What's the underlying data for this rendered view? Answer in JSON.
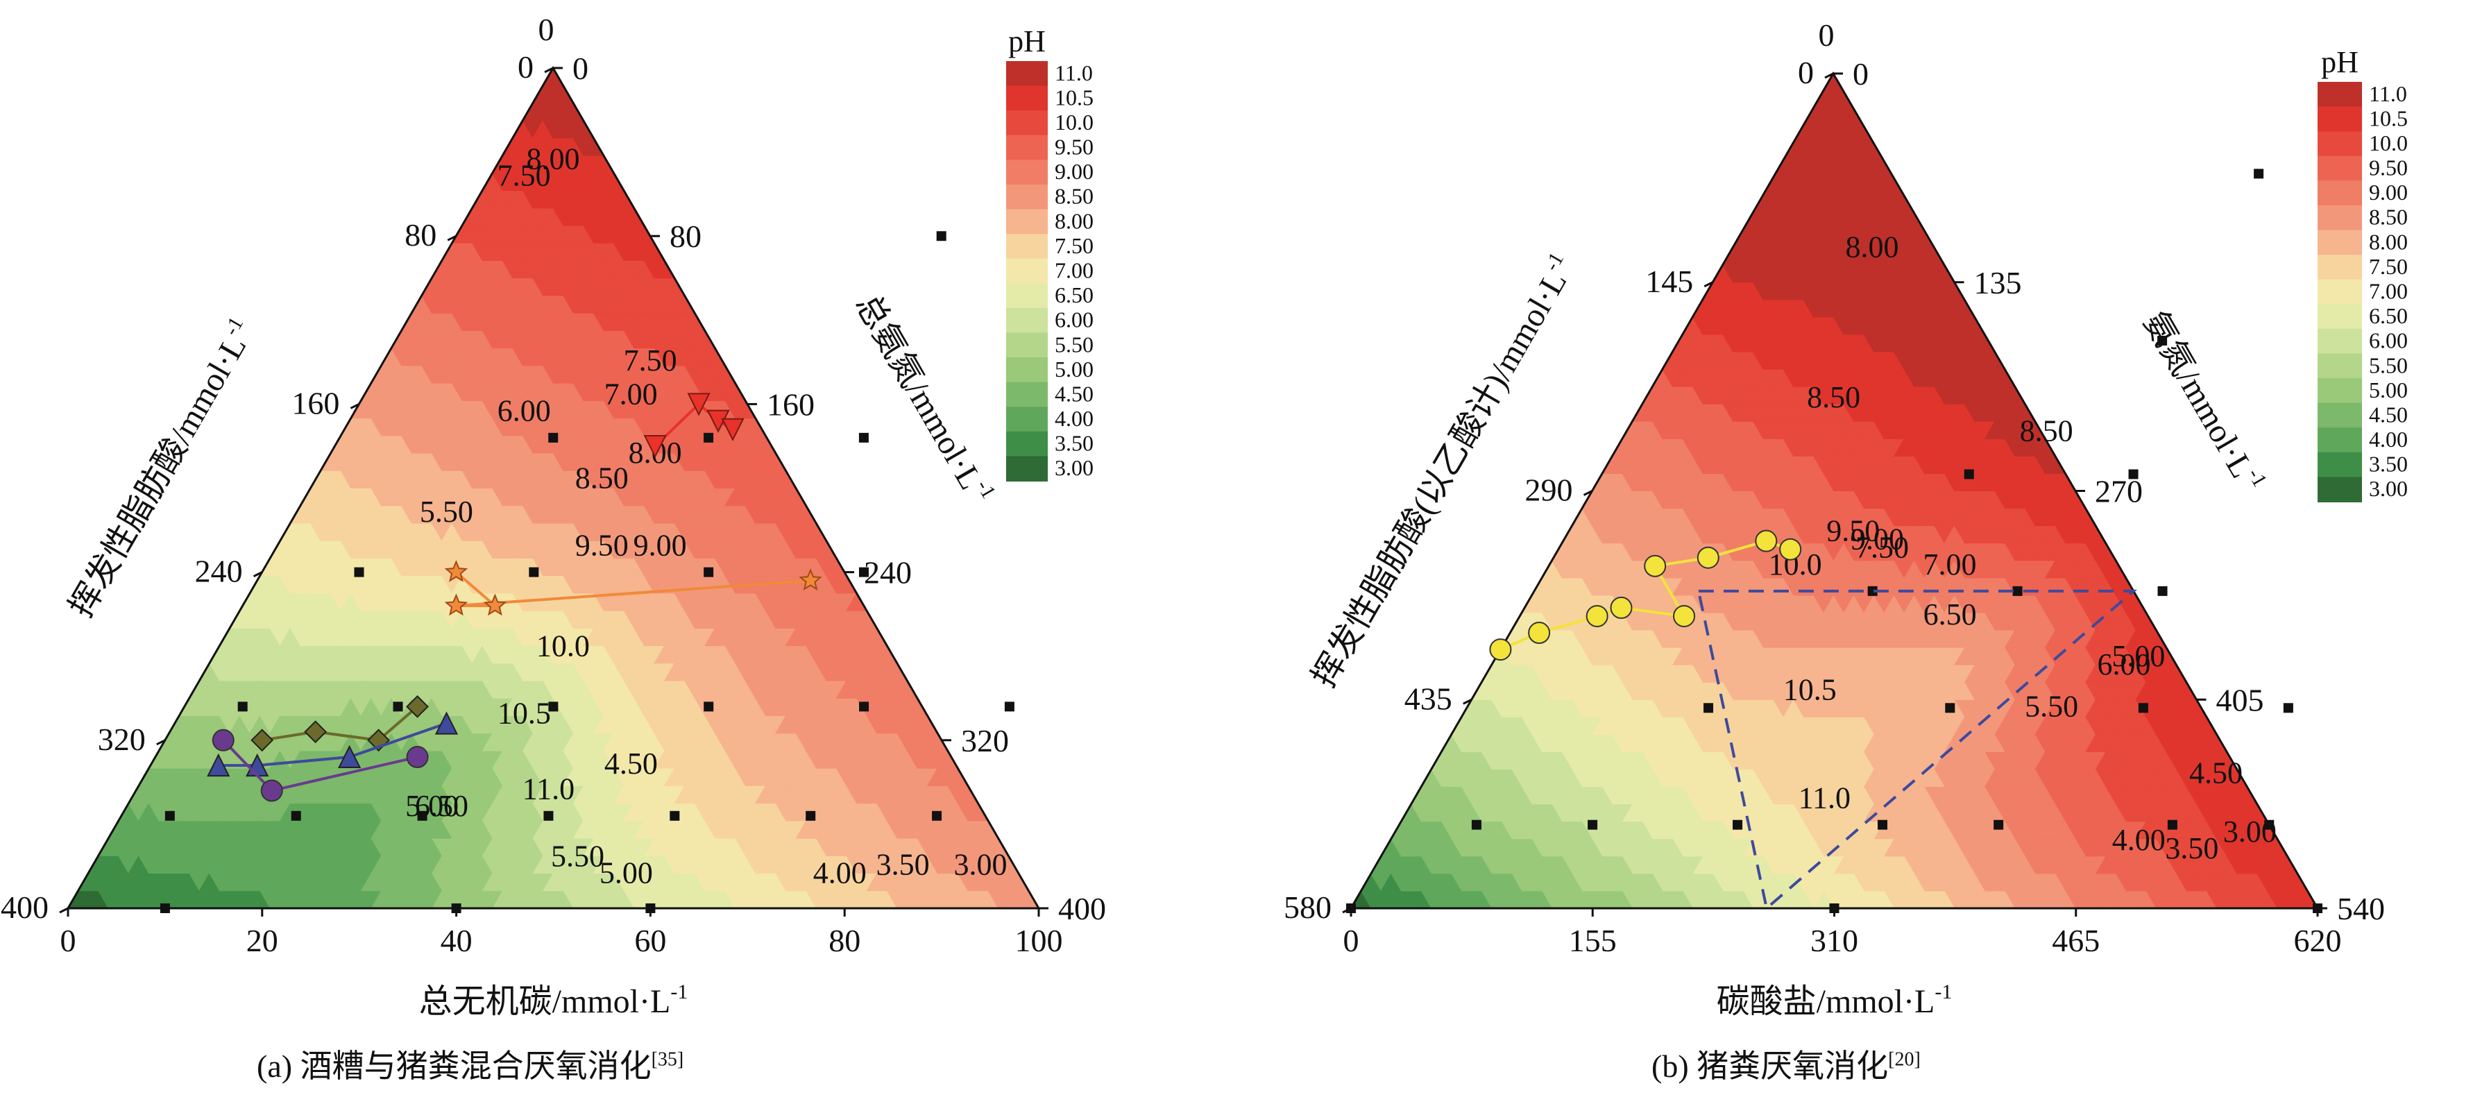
{
  "chart_data": [
    {
      "type": "ternary",
      "panel_label": "(a)",
      "caption": "酒糟与猪粪混合厌氧消化",
      "caption_ref": "[35]",
      "axes": {
        "bottom": {
          "label": "总无机碳/mmol·L",
          "superscript": "-1",
          "ticks": [
            "0",
            "20",
            "40",
            "60",
            "80",
            "100"
          ]
        },
        "left": {
          "label": "挥发性脂肪酸/mmol·L",
          "superscript": "-1",
          "ticks": [
            "400",
            "320",
            "240",
            "160",
            "80",
            "0"
          ]
        },
        "right": {
          "label": "总氨氮/mmol·L",
          "superscript": "-1",
          "ticks": [
            "400",
            "320",
            "240",
            "160",
            "80",
            "0"
          ]
        }
      },
      "contour_labels": [
        {
          "text": "11.0",
          "u": 0.43,
          "v": 0.13,
          "w": 0.44
        },
        {
          "text": "10.5",
          "u": 0.36,
          "v": 0.22,
          "w": 0.42
        },
        {
          "text": "10.0",
          "u": 0.36,
          "v": 0.3,
          "w": 0.34
        },
        {
          "text": "9.50",
          "u": 0.34,
          "v": 0.42,
          "w": 0.24
        },
        {
          "text": "9.00",
          "u": 0.4,
          "v": 0.42,
          "w": 0.18
        },
        {
          "text": "8.50",
          "u": 0.3,
          "v": 0.5,
          "w": 0.2
        },
        {
          "text": "8.00",
          "u": 0.34,
          "v": 0.53,
          "w": 0.13
        },
        {
          "text": "7.50",
          "u": 0.28,
          "v": 0.64,
          "w": 0.08
        },
        {
          "text": "7.00",
          "u": 0.28,
          "v": 0.6,
          "w": 0.12
        },
        {
          "text": "6.50",
          "u": 0.33,
          "v": 0.11,
          "w": 0.56
        },
        {
          "text": "6.00",
          "u": 0.18,
          "v": 0.58,
          "w": 0.24
        },
        {
          "text": "5.50",
          "u": 0.16,
          "v": 0.46,
          "w": 0.38
        },
        {
          "text": "5.00",
          "u": 0.32,
          "v": 0.11,
          "w": 0.57
        },
        {
          "text": "4.50",
          "u": 0.5,
          "v": 0.16,
          "w": 0.34
        },
        {
          "text": "5.50",
          "u": 0.5,
          "v": 0.05,
          "w": 0.45
        },
        {
          "text": "5.00",
          "u": 0.56,
          "v": 0.03,
          "w": 0.41
        },
        {
          "text": "4.00",
          "u": 0.78,
          "v": 0.03,
          "w": 0.19
        },
        {
          "text": "3.50",
          "u": 0.84,
          "v": 0.04,
          "w": 0.12
        },
        {
          "text": "3.00",
          "u": 0.92,
          "v": 0.04,
          "w": 0.04
        },
        {
          "text": "8.00",
          "u": 0.06,
          "v": 0.88,
          "w": 0.06
        },
        {
          "text": "7.50",
          "u": 0.04,
          "v": 0.86,
          "w": 0.1
        }
      ],
      "series": [
        {
          "marker": "triangle-down",
          "color": "#e8322a",
          "points": [
            [
              0.55,
              0.12
            ],
            [
              0.6,
              0.05
            ],
            [
              0.58,
              0.04
            ],
            [
              0.57,
              0.03
            ]
          ]
        },
        {
          "marker": "star",
          "color": "#f08a3a",
          "points": [
            [
              0.4,
              0.4
            ],
            [
              0.36,
              0.38
            ],
            [
              0.36,
              0.42
            ],
            [
              0.39,
              0.04
            ]
          ]
        },
        {
          "marker": "diamond",
          "color": "#6b6a2a",
          "points": [
            [
              0.24,
              0.52
            ],
            [
              0.2,
              0.58
            ],
            [
              0.21,
              0.64
            ],
            [
              0.2,
              0.7
            ]
          ]
        },
        {
          "marker": "triangle-up",
          "color": "#3e4a9c",
          "points": [
            [
              0.22,
              0.5
            ],
            [
              0.18,
              0.62
            ],
            [
              0.17,
              0.72
            ],
            [
              0.17,
              0.76
            ]
          ]
        },
        {
          "marker": "circle",
          "color": "#6a3a8f",
          "points": [
            [
              0.18,
              0.55
            ],
            [
              0.14,
              0.72
            ],
            [
              0.2,
              0.74
            ]
          ]
        }
      ],
      "colorbar": {
        "title": "pH",
        "ticks": [
          "11.0",
          "10.5",
          "10.0",
          "9.50",
          "9.00",
          "8.50",
          "8.00",
          "7.50",
          "7.00",
          "6.50",
          "6.00",
          "5.50",
          "5.00",
          "4.50",
          "4.00",
          "3.50",
          "3.00"
        ]
      }
    },
    {
      "type": "ternary",
      "panel_label": "(b)",
      "caption": "猪粪厌氧消化",
      "caption_ref": "[20]",
      "axes": {
        "bottom": {
          "label": "碳酸盐/mmol·L",
          "superscript": "-1",
          "ticks": [
            "0",
            "155",
            "310",
            "465",
            "620"
          ]
        },
        "left": {
          "label": "挥发性脂肪酸(以乙酸计)/mmol·L",
          "superscript": "-1",
          "ticks": [
            "580",
            "435",
            "290",
            "145",
            "0"
          ]
        },
        "right": {
          "label": "氨氮/mmol·L",
          "superscript": "-1",
          "ticks": [
            "540",
            "405",
            "270",
            "135",
            "0"
          ]
        }
      },
      "contour_labels": [
        {
          "text": "11.0",
          "u": 0.43,
          "v": 0.12,
          "w": 0.45
        },
        {
          "text": "10.5",
          "u": 0.35,
          "v": 0.25,
          "w": 0.4
        },
        {
          "text": "10.0",
          "u": 0.26,
          "v": 0.4,
          "w": 0.34
        },
        {
          "text": "9.00",
          "u": 0.33,
          "v": 0.43,
          "w": 0.24
        },
        {
          "text": "9.50",
          "u": 0.3,
          "v": 0.44,
          "w": 0.26
        },
        {
          "text": "8.50",
          "u": 0.2,
          "v": 0.6,
          "w": 0.2
        },
        {
          "text": "7.50",
          "u": 0.34,
          "v": 0.42,
          "w": 0.24
        },
        {
          "text": "6.50",
          "u": 0.45,
          "v": 0.34,
          "w": 0.21
        },
        {
          "text": "5.50",
          "u": 0.61,
          "v": 0.23,
          "w": 0.16
        },
        {
          "text": "5.00",
          "u": 0.67,
          "v": 0.29,
          "w": 0.04
        },
        {
          "text": "4.00",
          "u": 0.78,
          "v": 0.07,
          "w": 0.15
        },
        {
          "text": "3.50",
          "u": 0.84,
          "v": 0.06,
          "w": 0.1
        },
        {
          "text": "3.00",
          "u": 0.89,
          "v": 0.08,
          "w": 0.03
        },
        {
          "text": "4.50",
          "u": 0.82,
          "v": 0.15,
          "w": 0.03
        },
        {
          "text": "6.00",
          "u": 0.66,
          "v": 0.28,
          "w": 0.06
        },
        {
          "text": "7.00",
          "u": 0.42,
          "v": 0.4,
          "w": 0.18
        },
        {
          "text": "8.50",
          "u": 0.44,
          "v": 0.56,
          "w": 0.0
        },
        {
          "text": "8.00",
          "u": 0.15,
          "v": 0.78,
          "w": 0.07
        }
      ],
      "series": [
        {
          "marker": "circle",
          "color": "#f3e33a",
          "points": [
            [
              0.43,
              0.33,
              0.24
            ],
            [
              0.44,
              0.35,
              0.21
            ],
            [
              0.42,
              0.42,
              0.16
            ],
            [
              0.41,
              0.48,
              0.11
            ],
            [
              0.35,
              0.48,
              0.17
            ],
            [
              0.36,
              0.54,
              0.1
            ],
            [
              0.35,
              0.57,
              0.08
            ],
            [
              0.33,
              0.64,
              0.03
            ],
            [
              0.31,
              0.71,
              -0.02
            ]
          ]
        }
      ],
      "colorbar": {
        "title": "pH",
        "ticks": [
          "11.0",
          "10.5",
          "10.0",
          "9.50",
          "9.00",
          "8.50",
          "8.00",
          "7.50",
          "7.00",
          "6.50",
          "6.00",
          "5.50",
          "5.00",
          "4.50",
          "4.00",
          "3.50",
          "3.00"
        ]
      }
    }
  ],
  "captions": {
    "a_prefix": "(a) ",
    "a_text": "酒糟与猪粪混合厌氧消化",
    "a_ref": "[35]",
    "b_prefix": "(b) ",
    "b_text": "猪粪厌氧消化",
    "b_ref": "[20]"
  }
}
